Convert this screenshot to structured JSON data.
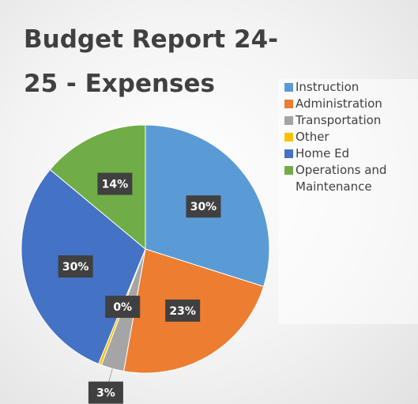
{
  "chart_data": {
    "type": "pie",
    "title": "Budget Report 24-25 - Expenses",
    "categories": [
      "Instruction",
      "Administration",
      "Transportation",
      "Other",
      "Home Ed",
      "Operations and Maintenance"
    ],
    "values": [
      30,
      23,
      3,
      0.4,
      30,
      14
    ],
    "value_labels": [
      "30%",
      "23%",
      "3%",
      "0%",
      "30%",
      "14%"
    ],
    "colors": [
      "#5b9bd5",
      "#ed7d31",
      "#a5a5a5",
      "#ffc000",
      "#4472c4",
      "#70ad47"
    ],
    "legend": "right"
  }
}
